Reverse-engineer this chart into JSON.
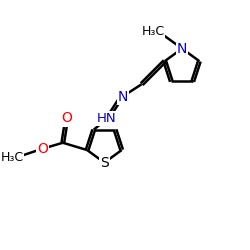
{
  "bg_color": "#ffffff",
  "bond_color": "#000000",
  "bond_width": 1.8,
  "dbo": 0.06,
  "figsize": [
    2.5,
    2.5
  ],
  "dpi": 100,
  "xlim": [
    0,
    10
  ],
  "ylim": [
    0,
    10
  ],
  "colors": {
    "black": "#000000",
    "red": "#ff0000",
    "blue": "#0000cc"
  }
}
